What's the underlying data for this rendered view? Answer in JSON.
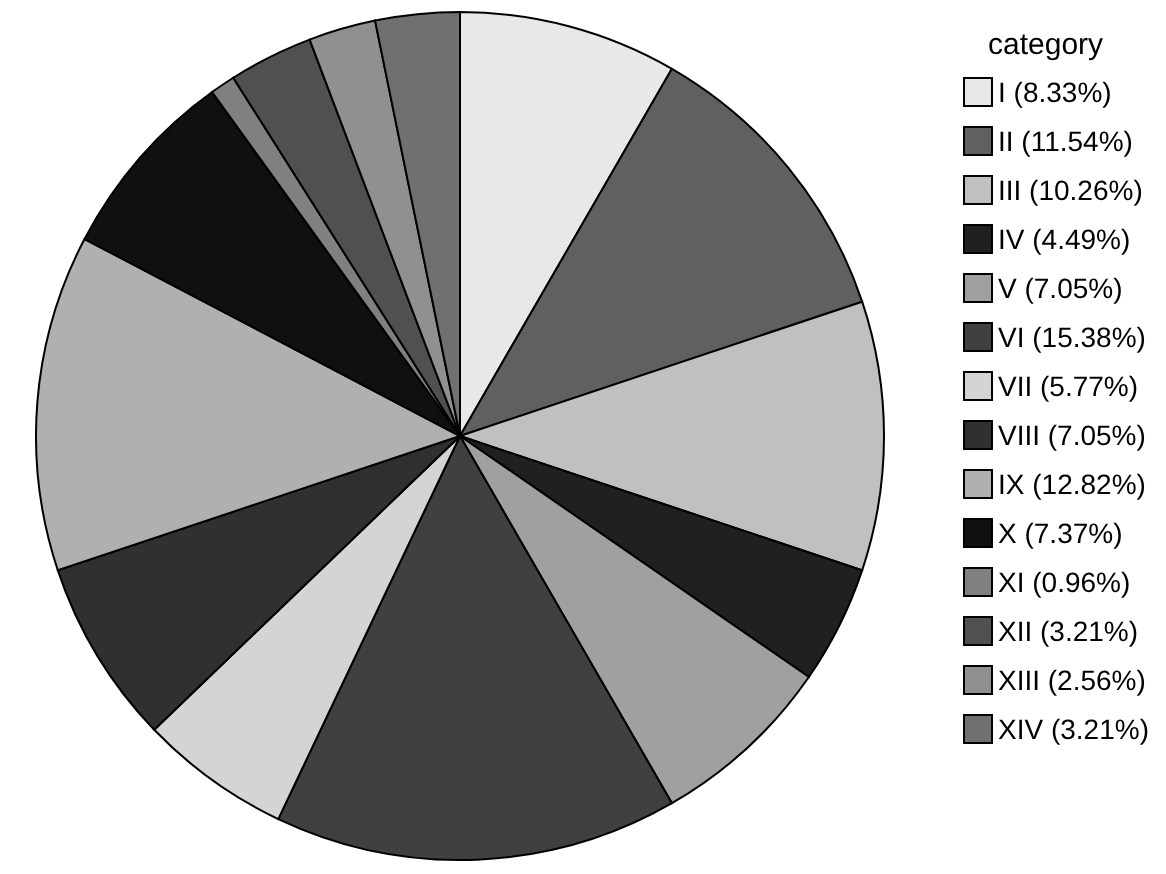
{
  "chart_data": {
    "type": "pie",
    "legend_title": "category",
    "categories": [
      "I (8.33%)",
      "II (11.54%)",
      "III (10.26%)",
      "IV (4.49%)",
      "V (7.05%)",
      "VI (15.38%)",
      "VII (5.77%)",
      "VIII (7.05%)",
      "IX (12.82%)",
      "X (7.37%)",
      "XI (0.96%)",
      "XII (3.21%)",
      "XIII (2.56%)",
      "XIV (3.21%)"
    ],
    "values": [
      8.33,
      11.54,
      10.26,
      4.49,
      7.05,
      15.38,
      5.77,
      7.05,
      12.82,
      7.37,
      0.96,
      3.21,
      2.56,
      3.21
    ],
    "colors": [
      "#e8e8e8",
      "#606060",
      "#c0c0c0",
      "#202020",
      "#a0a0a0",
      "#404040",
      "#d4d4d4",
      "#303030",
      "#b0b0b0",
      "#101010",
      "#808080",
      "#505050",
      "#909090",
      "#707070"
    ],
    "legend": "right"
  }
}
